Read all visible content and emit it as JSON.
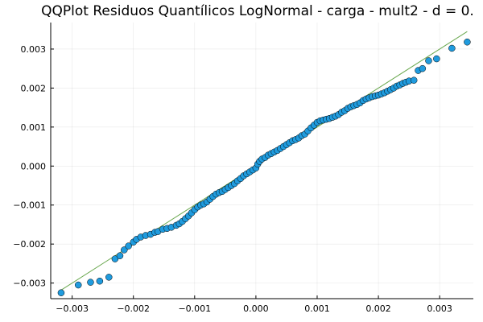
{
  "chart_data": {
    "type": "scatter",
    "title": "QQPlot Residuos Quantílicos LogNormal - carga - mult2 - d = 0.",
    "xlabel": "",
    "ylabel": "",
    "xlim": [
      -0.00335,
      0.00355
    ],
    "ylim": [
      -0.0034,
      0.00368
    ],
    "grid": true,
    "legend": "none",
    "x_ticks": [
      {
        "value": -0.003,
        "label": "−0.003"
      },
      {
        "value": -0.002,
        "label": "−0.002"
      },
      {
        "value": -0.001,
        "label": "−0.001"
      },
      {
        "value": 0.0,
        "label": "0.000"
      },
      {
        "value": 0.001,
        "label": "0.001"
      },
      {
        "value": 0.002,
        "label": "0.002"
      },
      {
        "value": 0.003,
        "label": "0.003"
      }
    ],
    "y_ticks": [
      {
        "value": -0.003,
        "label": "−0.003"
      },
      {
        "value": -0.002,
        "label": "−0.002"
      },
      {
        "value": -0.001,
        "label": "−0.001"
      },
      {
        "value": 0.0,
        "label": "0.000"
      },
      {
        "value": 0.001,
        "label": "0.001"
      },
      {
        "value": 0.002,
        "label": "0.002"
      },
      {
        "value": 0.003,
        "label": "0.003"
      }
    ],
    "reference_line": {
      "color": "#6aa84f",
      "points": [
        [
          -0.0032,
          -0.0032
        ],
        [
          0.00345,
          0.00345
        ]
      ]
    },
    "series": [
      {
        "marker_color": "#1f9bde",
        "points": [
          [
            -0.00318,
            -0.00325
          ],
          [
            -0.0029,
            -0.00305
          ],
          [
            -0.0027,
            -0.00298
          ],
          [
            -0.00255,
            -0.00295
          ],
          [
            -0.0024,
            -0.00285
          ],
          [
            -0.0023,
            -0.00238
          ],
          [
            -0.00222,
            -0.0023
          ],
          [
            -0.00215,
            -0.00215
          ],
          [
            -0.00208,
            -0.00205
          ],
          [
            -0.002,
            -0.00195
          ],
          [
            -0.00195,
            -0.00188
          ],
          [
            -0.00188,
            -0.00182
          ],
          [
            -0.0018,
            -0.00178
          ],
          [
            -0.00172,
            -0.00175
          ],
          [
            -0.00165,
            -0.0017
          ],
          [
            -0.0016,
            -0.00168
          ],
          [
            -0.00152,
            -0.00162
          ],
          [
            -0.00145,
            -0.0016
          ],
          [
            -0.00138,
            -0.00157
          ],
          [
            -0.0013,
            -0.00152
          ],
          [
            -0.00125,
            -0.00148
          ],
          [
            -0.0012,
            -0.00142
          ],
          [
            -0.00115,
            -0.00135
          ],
          [
            -0.0011,
            -0.00128
          ],
          [
            -0.00105,
            -0.0012
          ],
          [
            -0.001,
            -0.00112
          ],
          [
            -0.00095,
            -0.00105
          ],
          [
            -0.0009,
            -0.001
          ],
          [
            -0.00085,
            -0.00097
          ],
          [
            -0.0008,
            -0.00092
          ],
          [
            -0.00075,
            -0.00085
          ],
          [
            -0.0007,
            -0.00078
          ],
          [
            -0.00065,
            -0.00072
          ],
          [
            -0.0006,
            -0.00068
          ],
          [
            -0.00055,
            -0.00065
          ],
          [
            -0.0005,
            -0.0006
          ],
          [
            -0.00045,
            -0.00055
          ],
          [
            -0.0004,
            -0.0005
          ],
          [
            -0.00035,
            -0.00045
          ],
          [
            -0.0003,
            -0.00038
          ],
          [
            -0.00025,
            -0.00032
          ],
          [
            -0.0002,
            -0.00025
          ],
          [
            -0.00015,
            -0.0002
          ],
          [
            -0.0001,
            -0.00015
          ],
          [
            -5e-05,
            -0.0001
          ],
          [
            0.0,
            -5e-05
          ],
          [
            3e-05,
            5e-05
          ],
          [
            6e-05,
            0.00012
          ],
          [
            0.0001,
            0.00018
          ],
          [
            0.00015,
            0.00022
          ],
          [
            0.0002,
            0.00028
          ],
          [
            0.00025,
            0.00032
          ],
          [
            0.0003,
            0.00036
          ],
          [
            0.00035,
            0.0004
          ],
          [
            0.0004,
            0.00045
          ],
          [
            0.00045,
            0.0005
          ],
          [
            0.0005,
            0.00055
          ],
          [
            0.00055,
            0.0006
          ],
          [
            0.0006,
            0.00065
          ],
          [
            0.00065,
            0.00068
          ],
          [
            0.0007,
            0.00072
          ],
          [
            0.00075,
            0.00078
          ],
          [
            0.0008,
            0.00082
          ],
          [
            0.00085,
            0.0009
          ],
          [
            0.0009,
            0.00098
          ],
          [
            0.00095,
            0.00105
          ],
          [
            0.001,
            0.00112
          ],
          [
            0.00105,
            0.00116
          ],
          [
            0.0011,
            0.00118
          ],
          [
            0.00115,
            0.0012
          ],
          [
            0.0012,
            0.00122
          ],
          [
            0.00125,
            0.00125
          ],
          [
            0.0013,
            0.00128
          ],
          [
            0.00135,
            0.00132
          ],
          [
            0.0014,
            0.00138
          ],
          [
            0.00145,
            0.00142
          ],
          [
            0.0015,
            0.00148
          ],
          [
            0.00155,
            0.00152
          ],
          [
            0.0016,
            0.00155
          ],
          [
            0.00165,
            0.00158
          ],
          [
            0.0017,
            0.00162
          ],
          [
            0.00175,
            0.00168
          ],
          [
            0.0018,
            0.00172
          ],
          [
            0.00185,
            0.00175
          ],
          [
            0.0019,
            0.00178
          ],
          [
            0.00195,
            0.0018
          ],
          [
            0.002,
            0.00182
          ],
          [
            0.00205,
            0.00185
          ],
          [
            0.0021,
            0.00188
          ],
          [
            0.00215,
            0.00192
          ],
          [
            0.0022,
            0.00196
          ],
          [
            0.00225,
            0.002
          ],
          [
            0.0023,
            0.00205
          ],
          [
            0.00235,
            0.00208
          ],
          [
            0.0024,
            0.00212
          ],
          [
            0.00245,
            0.00215
          ],
          [
            0.0025,
            0.00218
          ],
          [
            0.00258,
            0.0022
          ],
          [
            0.00265,
            0.00245
          ],
          [
            0.00272,
            0.0025
          ],
          [
            0.00282,
            0.0027
          ],
          [
            0.00295,
            0.00275
          ],
          [
            0.0032,
            0.00302
          ],
          [
            0.00345,
            0.00318
          ]
        ]
      }
    ]
  }
}
